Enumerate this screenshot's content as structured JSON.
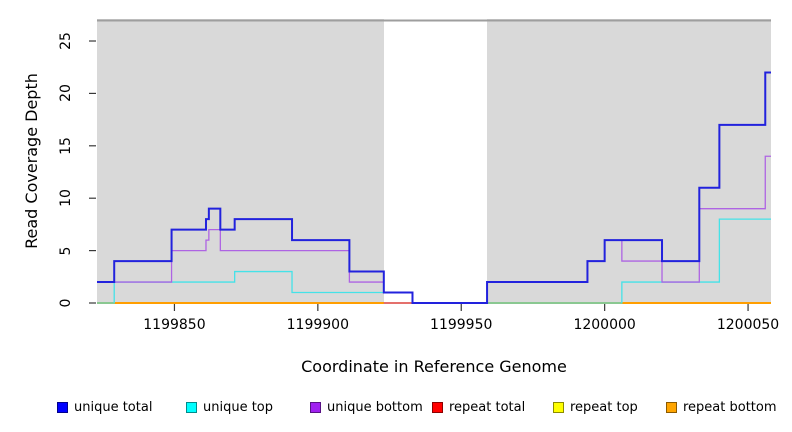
{
  "chart_data": {
    "type": "line",
    "subtype": "step-coverage",
    "title": "",
    "x_axis": {
      "label": "Coordinate in Reference Genome",
      "ticks": [
        1199850,
        1199900,
        1199950,
        1200000,
        1200050
      ],
      "range": [
        1199823,
        1200058
      ]
    },
    "y_axis": {
      "label": "Read Coverage Depth",
      "ticks": [
        0,
        5,
        10,
        15,
        20,
        25
      ],
      "range": [
        0,
        27.1
      ]
    },
    "panel": {
      "bg": "#D9D9D9",
      "top_line": "#9E9E9E",
      "grid": false,
      "tick_color": "#383838"
    },
    "gap_band": {
      "x_start": 1199923,
      "x_end": 1199959,
      "fill": "#FFFFFF"
    },
    "series": [
      {
        "id": "repeat-top",
        "name": "repeat top",
        "color": "#FFFF00",
        "width": 1.2,
        "segments": [
          {
            "points": [
              [
                1199823,
                0
              ]
            ],
            "end": 1200058
          }
        ]
      },
      {
        "id": "repeat-total",
        "name": "repeat total",
        "color": "#DB4050",
        "width": 1.4,
        "segments": [
          {
            "points": [
              [
                1199823,
                0
              ]
            ],
            "end": 1200058
          }
        ]
      },
      {
        "id": "repeat-bottom",
        "name": "repeat bottom",
        "color": "#FF9E00",
        "width": 2,
        "segments": [
          {
            "points": [
              [
                1199823,
                0
              ]
            ],
            "end": 1199923
          },
          {
            "points": [
              [
                1199933,
                0
              ]
            ],
            "end": 1200058
          }
        ]
      },
      {
        "id": "unique-top",
        "name": "unique top",
        "color": "#45E2E8",
        "width": 1.3,
        "segments": [
          {
            "points": [
              [
                1199823,
                0
              ],
              [
                1199829,
                2
              ],
              [
                1199871,
                3
              ],
              [
                1199891,
                1
              ]
            ],
            "end": 1199923
          },
          {
            "points": [
              [
                1199959,
                0
              ],
              [
                1200006,
                2
              ],
              [
                1200040,
                8
              ]
            ],
            "end": 1200058
          }
        ]
      },
      {
        "id": "unique-bottom",
        "name": "unique bottom",
        "color": "#AE64E3",
        "width": 1.3,
        "segments": [
          {
            "points": [
              [
                1199823,
                2
              ],
              [
                1199849,
                5
              ],
              [
                1199861,
                6
              ],
              [
                1199862,
                7
              ],
              [
                1199866,
                5
              ],
              [
                1199911,
                2
              ],
              [
                1199923,
                1
              ],
              [
                1199933,
                0
              ],
              [
                1199959,
                2
              ],
              [
                1199994,
                4
              ],
              [
                1200000,
                6
              ],
              [
                1200006,
                4
              ],
              [
                1200020,
                2
              ],
              [
                1200033,
                9
              ],
              [
                1200056,
                14
              ]
            ],
            "end": 1200058
          }
        ]
      },
      {
        "id": "unique-total",
        "name": "unique total",
        "color": "#2222DD",
        "width": 2,
        "segments": [
          {
            "points": [
              [
                1199823,
                2
              ],
              [
                1199829,
                4
              ],
              [
                1199849,
                7
              ],
              [
                1199861,
                8
              ],
              [
                1199862,
                9
              ],
              [
                1199866,
                7
              ],
              [
                1199871,
                8
              ],
              [
                1199891,
                6
              ],
              [
                1199911,
                3
              ],
              [
                1199923,
                1
              ],
              [
                1199933,
                0
              ],
              [
                1199959,
                2
              ],
              [
                1199994,
                4
              ],
              [
                1200000,
                6
              ],
              [
                1200020,
                4
              ],
              [
                1200033,
                11
              ],
              [
                1200040,
                17
              ],
              [
                1200056,
                22
              ]
            ],
            "end": 1200058
          }
        ]
      }
    ],
    "legend": {
      "position": "bottom",
      "items": [
        {
          "id": "unique-total",
          "label": "unique total",
          "color": "#0000FF",
          "x": 57
        },
        {
          "id": "unique-top",
          "label": "unique top",
          "color": "#00FFFF",
          "x": 186
        },
        {
          "id": "unique-bottom",
          "label": "unique bottom",
          "color": "#A020F0",
          "x": 310
        },
        {
          "id": "repeat-total",
          "label": "repeat total",
          "color": "#FF0000",
          "x": 432
        },
        {
          "id": "repeat-top",
          "label": "repeat top",
          "color": "#FFFF00",
          "x": 553
        },
        {
          "id": "repeat-bottom",
          "label": "repeat bottom",
          "color": "#FFA500",
          "x": 666
        }
      ]
    }
  }
}
